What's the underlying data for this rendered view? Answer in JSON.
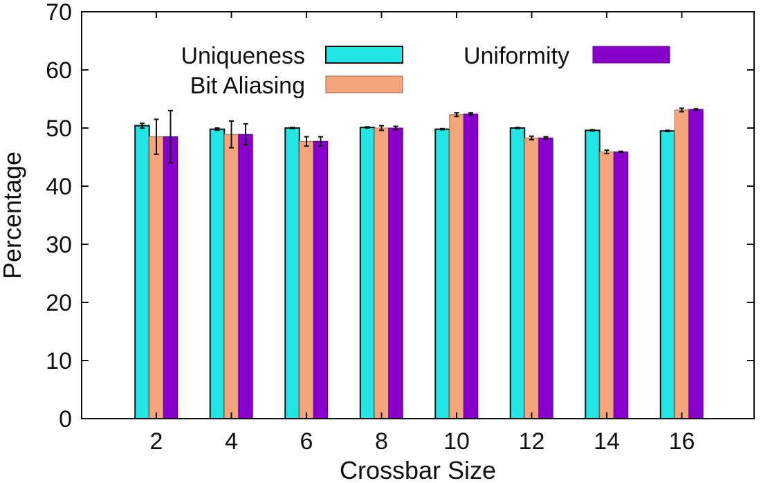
{
  "chart_data": {
    "type": "bar",
    "title": "",
    "xlabel": "Crossbar Size",
    "ylabel": "Percentage",
    "ylim": [
      0,
      70
    ],
    "yticks": [
      0,
      10,
      20,
      30,
      40,
      50,
      60,
      70
    ],
    "grid": false,
    "legend_position": "top",
    "categories": [
      "2",
      "4",
      "6",
      "8",
      "10",
      "12",
      "14",
      "16"
    ],
    "series": [
      {
        "name": "Uniqueness",
        "color": "#22e6e6",
        "values": [
          50.4,
          49.8,
          50.0,
          50.1,
          49.8,
          50.0,
          49.6,
          49.5
        ],
        "errors": [
          0.4,
          0.2,
          0.1,
          0.1,
          0.1,
          0.1,
          0.1,
          0.1
        ]
      },
      {
        "name": "Bit Aliasing",
        "color": "#f4a57c",
        "values": [
          48.5,
          48.9,
          47.7,
          50.0,
          52.3,
          48.3,
          45.9,
          53.1
        ],
        "errors": [
          3.0,
          2.3,
          0.8,
          0.4,
          0.3,
          0.3,
          0.3,
          0.3
        ]
      },
      {
        "name": "Uniformity",
        "color": "#8800cc",
        "values": [
          48.5,
          48.9,
          47.7,
          50.0,
          52.4,
          48.3,
          45.9,
          53.2
        ],
        "errors": [
          4.5,
          1.8,
          0.8,
          0.3,
          0.2,
          0.2,
          0.1,
          0.1
        ]
      }
    ]
  }
}
